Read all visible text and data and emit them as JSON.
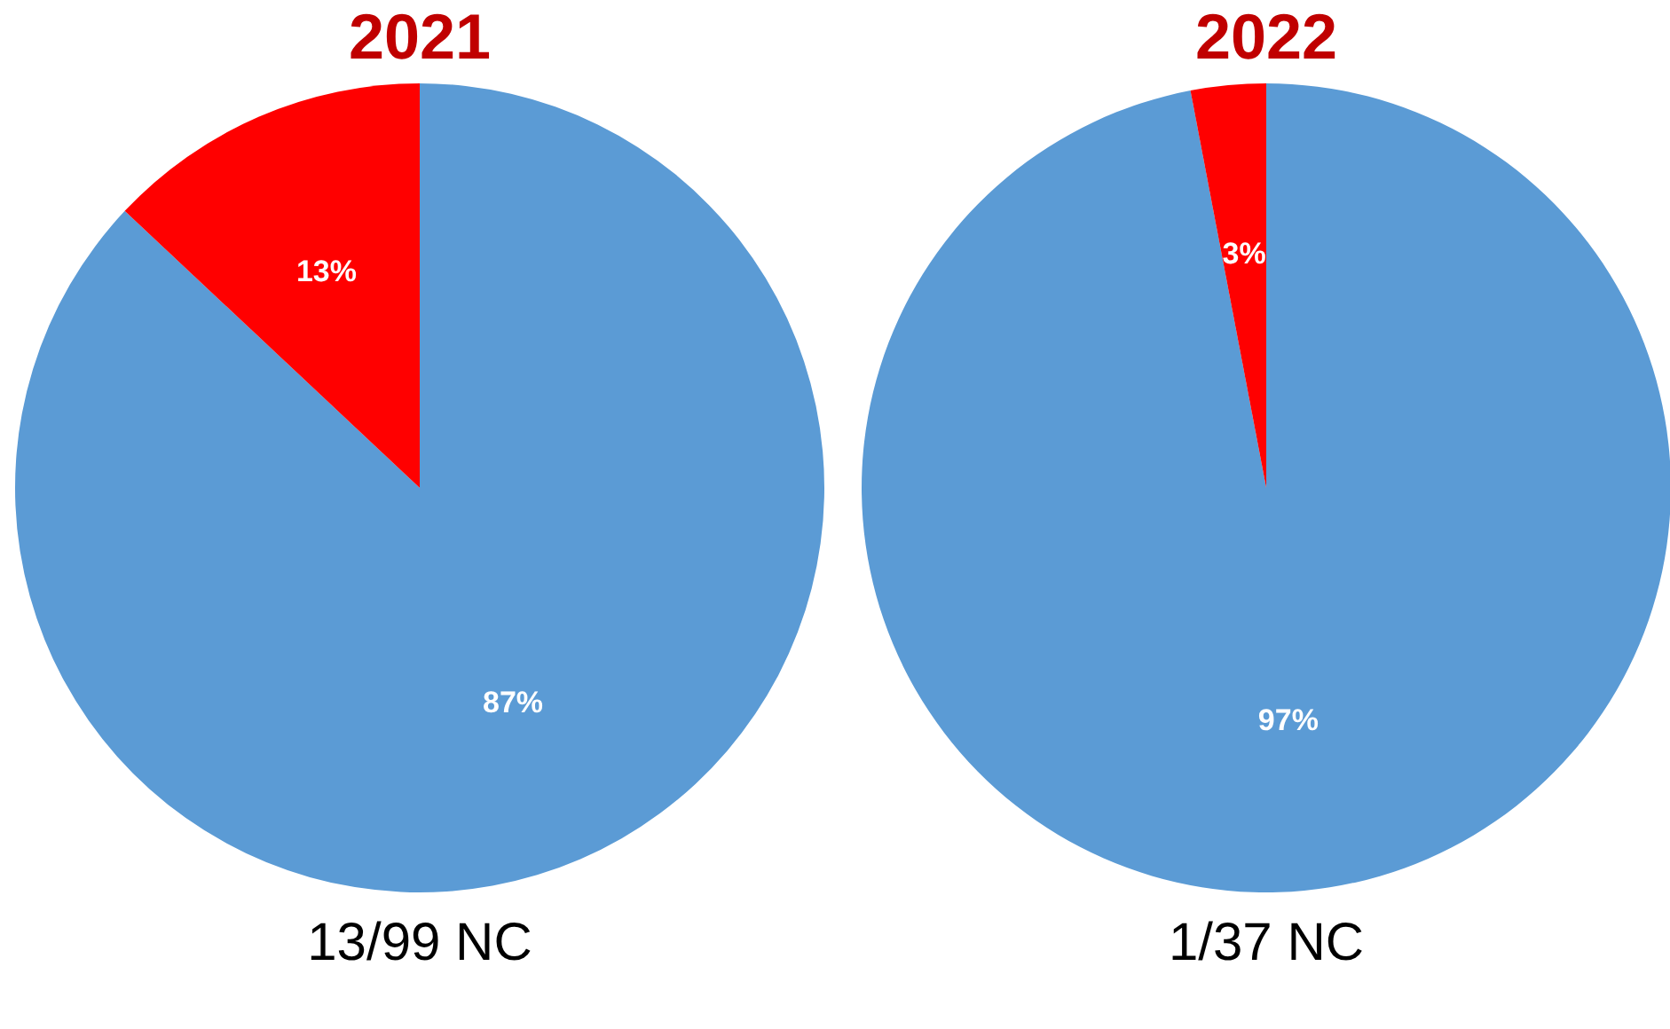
{
  "chart_data": [
    {
      "type": "pie",
      "title": "2021",
      "categories": [
        null,
        null
      ],
      "values": [
        87,
        13
      ],
      "colors": [
        "#5b9bd5",
        "#ff0000"
      ],
      "value_labels": [
        "87%",
        "13%"
      ],
      "annotations": [
        "13/99 NC"
      ]
    },
    {
      "type": "pie",
      "title": "2022",
      "categories": [
        null,
        null
      ],
      "values": [
        97,
        3
      ],
      "colors": [
        "#5b9bd5",
        "#ff0000"
      ],
      "value_labels": [
        "97%",
        "3%"
      ],
      "annotations": [
        "1/37 NC"
      ]
    }
  ]
}
